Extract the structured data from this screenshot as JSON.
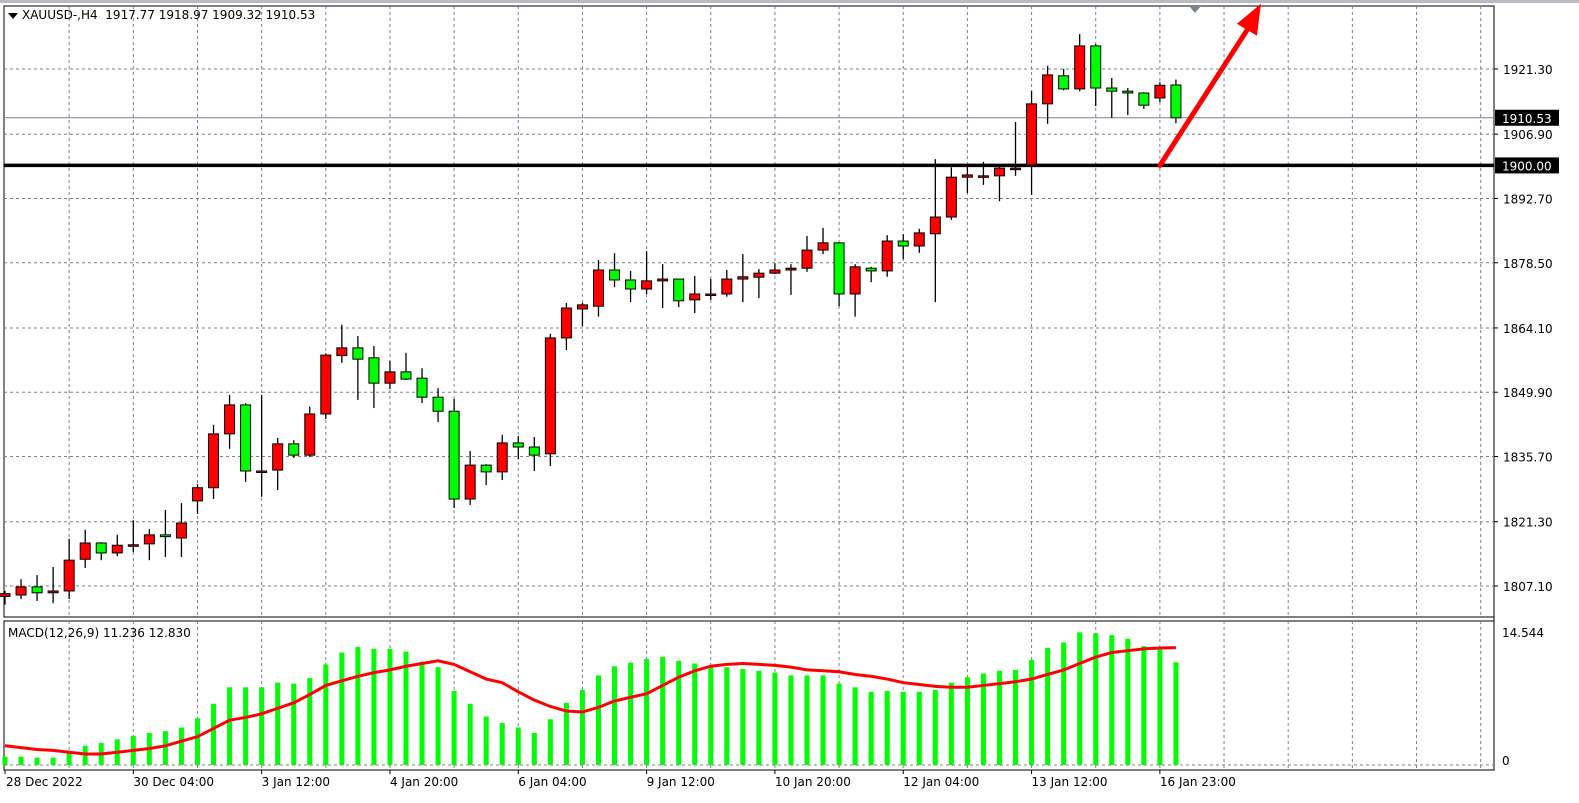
{
  "header": {
    "symbol": "XAUUSD-,H4",
    "ohlc": "1917.77 1918.97 1909.32 1910.53"
  },
  "macd_panel": {
    "label": "MACD(12,26,9) 11.236 12.830"
  },
  "colors": {
    "up_candle": "#ff0000",
    "down_candle": "#00ff00",
    "histogram": "#00ff00",
    "signal_line": "#ff0000",
    "grid": "#76828f",
    "level_line": "#000000",
    "bid_line": "#76828f",
    "arrow": "#ff0000"
  },
  "chart_data": [
    {
      "type": "candlestick",
      "title": "XAUUSD-,H4",
      "grid": true,
      "price_axis": {
        "range": [
          1800.25,
          1935.66
        ],
        "ticks": [
          "1921.30",
          "1906.90",
          "1892.70",
          "1878.50",
          "1864.10",
          "1849.90",
          "1835.70",
          "1821.30",
          "1807.10"
        ],
        "highlighted": [
          "1910.53",
          "1900.00"
        ]
      },
      "time_axis": {
        "labels": [
          {
            "candle": 0,
            "text": "28 Dec 2022"
          },
          {
            "candle": 8,
            "text": "30 Dec 04:00"
          },
          {
            "candle": 16,
            "text": "3 Jan 12:00"
          },
          {
            "candle": 24,
            "text": "4 Jan 20:00"
          },
          {
            "candle": 32,
            "text": "6 Jan 04:00"
          },
          {
            "candle": 40,
            "text": "9 Jan 12:00"
          },
          {
            "candle": 48,
            "text": "10 Jan 20:00"
          },
          {
            "candle": 56,
            "text": "12 Jan 04:00"
          },
          {
            "candle": 64,
            "text": "13 Jan 12:00"
          },
          {
            "candle": 72,
            "text": "16 Jan 23:00"
          }
        ]
      },
      "ohlc": [
        [
          1804.8,
          1806.0,
          1803.0,
          1805.4
        ],
        [
          1805.1,
          1808.6,
          1804.2,
          1806.9
        ],
        [
          1806.9,
          1809.5,
          1803.8,
          1805.6
        ],
        [
          1805.6,
          1811.3,
          1803.3,
          1806.0
        ],
        [
          1806.0,
          1817.5,
          1804.2,
          1812.8
        ],
        [
          1813.0,
          1819.5,
          1811.1,
          1816.6
        ],
        [
          1816.6,
          1816.8,
          1812.8,
          1814.4
        ],
        [
          1814.4,
          1818.4,
          1813.7,
          1816.1
        ],
        [
          1816.2,
          1821.6,
          1814.6,
          1816.2
        ],
        [
          1816.4,
          1819.7,
          1812.8,
          1818.4
        ],
        [
          1818.4,
          1823.9,
          1813.5,
          1818.0
        ],
        [
          1817.7,
          1825.4,
          1813.5,
          1821.0
        ],
        [
          1825.9,
          1829.6,
          1823.0,
          1828.8
        ],
        [
          1828.8,
          1842.7,
          1826.3,
          1840.7
        ],
        [
          1840.7,
          1849.3,
          1837.4,
          1847.1
        ],
        [
          1847.1,
          1847.5,
          1830.1,
          1832.5
        ],
        [
          1832.5,
          1849.3,
          1826.8,
          1832.5
        ],
        [
          1832.7,
          1839.8,
          1828.3,
          1838.5
        ],
        [
          1838.5,
          1839.3,
          1835.4,
          1836.0
        ],
        [
          1836.0,
          1846.7,
          1835.6,
          1845.1
        ],
        [
          1845.1,
          1858.5,
          1844.0,
          1858.1
        ],
        [
          1858.0,
          1864.8,
          1856.4,
          1859.7
        ],
        [
          1859.7,
          1862.3,
          1848.2,
          1857.2
        ],
        [
          1857.5,
          1860.1,
          1846.4,
          1851.9
        ],
        [
          1851.9,
          1856.8,
          1850.6,
          1854.4
        ],
        [
          1854.4,
          1858.6,
          1852.6,
          1852.8
        ],
        [
          1853.0,
          1855.2,
          1847.5,
          1848.8
        ],
        [
          1848.8,
          1850.8,
          1843.3,
          1845.7
        ],
        [
          1845.7,
          1848.4,
          1824.3,
          1826.3
        ],
        [
          1826.3,
          1836.9,
          1825.0,
          1833.8
        ],
        [
          1833.8,
          1834.0,
          1829.4,
          1832.3
        ],
        [
          1832.3,
          1840.5,
          1830.5,
          1838.7
        ],
        [
          1838.7,
          1840.2,
          1835.1,
          1837.8
        ],
        [
          1837.8,
          1840.0,
          1832.5,
          1836.0
        ],
        [
          1836.3,
          1862.8,
          1833.6,
          1861.9
        ],
        [
          1861.9,
          1869.6,
          1859.2,
          1868.5
        ],
        [
          1868.3,
          1869.6,
          1864.5,
          1869.2
        ],
        [
          1868.9,
          1879.1,
          1866.6,
          1876.9
        ],
        [
          1876.9,
          1880.6,
          1873.1,
          1874.7
        ],
        [
          1874.7,
          1876.7,
          1869.8,
          1872.7
        ],
        [
          1872.7,
          1881.1,
          1871.6,
          1874.5
        ],
        [
          1874.5,
          1878.2,
          1868.5,
          1874.9
        ],
        [
          1874.9,
          1875.0,
          1868.7,
          1870.1
        ],
        [
          1870.3,
          1875.6,
          1867.4,
          1871.6
        ],
        [
          1871.6,
          1874.9,
          1870.3,
          1871.6
        ],
        [
          1871.6,
          1876.9,
          1871.0,
          1874.9
        ],
        [
          1874.9,
          1880.4,
          1869.8,
          1875.4
        ],
        [
          1875.3,
          1877.1,
          1870.7,
          1876.2
        ],
        [
          1876.2,
          1878.4,
          1876.0,
          1876.9
        ],
        [
          1876.9,
          1878.2,
          1871.4,
          1877.3
        ],
        [
          1877.3,
          1884.4,
          1876.5,
          1881.3
        ],
        [
          1881.3,
          1886.2,
          1880.4,
          1882.9
        ],
        [
          1882.9,
          1883.0,
          1868.9,
          1871.6
        ],
        [
          1871.6,
          1878.2,
          1866.6,
          1877.6
        ],
        [
          1877.3,
          1877.6,
          1874.2,
          1876.7
        ],
        [
          1876.7,
          1884.6,
          1875.4,
          1883.3
        ],
        [
          1883.3,
          1884.8,
          1879.3,
          1882.2
        ],
        [
          1882.2,
          1886.0,
          1880.7,
          1885.1
        ],
        [
          1884.9,
          1901.4,
          1869.8,
          1888.6
        ],
        [
          1888.6,
          1899.6,
          1888.0,
          1897.4
        ],
        [
          1897.4,
          1900.0,
          1893.9,
          1897.9
        ],
        [
          1897.7,
          1900.8,
          1895.7,
          1897.7
        ],
        [
          1897.7,
          1900.2,
          1892.1,
          1899.4
        ],
        [
          1899.4,
          1909.6,
          1897.7,
          1899.4
        ],
        [
          1900.1,
          1916.4,
          1893.5,
          1913.6
        ],
        [
          1913.6,
          1922.0,
          1909.2,
          1920.0
        ],
        [
          1919.8,
          1921.3,
          1916.6,
          1916.9
        ],
        [
          1916.9,
          1929.0,
          1916.4,
          1926.4
        ],
        [
          1926.4,
          1926.8,
          1913.1,
          1917.1
        ],
        [
          1917.1,
          1919.3,
          1910.5,
          1916.4
        ],
        [
          1916.4,
          1917.1,
          1911.1,
          1916.0
        ],
        [
          1916.0,
          1916.2,
          1912.5,
          1913.3
        ],
        [
          1914.9,
          1918.4,
          1914.0,
          1917.7
        ],
        [
          1917.77,
          1918.97,
          1909.32,
          1910.53
        ]
      ],
      "annotations": [
        {
          "type": "horizontal_line",
          "price": 1900.0
        },
        {
          "type": "bid_line",
          "price": 1910.53
        },
        {
          "type": "arrow",
          "from": {
            "candle": 72,
            "price": 1900.0
          },
          "to": {
            "candle": 78.3,
            "price": 1935.7
          }
        }
      ]
    },
    {
      "type": "bar+line",
      "title": "MACD(12,26,9)",
      "ylim": [
        0,
        14.544
      ],
      "y_ticks": [
        "14.544",
        "0"
      ],
      "histogram": [
        0.9,
        0.9,
        0.8,
        0.8,
        1.4,
        2.1,
        2.4,
        2.8,
        3.2,
        3.5,
        3.7,
        4.1,
        5.1,
        6.7,
        8.5,
        8.5,
        8.5,
        9.0,
        8.9,
        9.5,
        11.0,
        12.3,
        12.9,
        12.7,
        12.7,
        12.4,
        11.3,
        10.7,
        8.1,
        6.7,
        5.3,
        4.6,
        4.1,
        3.5,
        5.0,
        6.8,
        8.2,
        9.8,
        10.8,
        11.2,
        11.6,
        11.8,
        11.4,
        11.1,
        10.7,
        10.7,
        10.5,
        10.3,
        10.1,
        9.8,
        9.8,
        9.8,
        8.9,
        8.5,
        8.0,
        8.1,
        8.0,
        8.0,
        8.2,
        9.0,
        9.6,
        10.0,
        10.3,
        10.4,
        11.5,
        12.8,
        13.4,
        14.5,
        14.4,
        14.2,
        13.8,
        13.0,
        12.8,
        11.236
      ],
      "signal": [
        2.1,
        1.9,
        1.7,
        1.6,
        1.4,
        1.2,
        1.2,
        1.4,
        1.6,
        1.8,
        2.1,
        2.6,
        3.1,
        4.0,
        4.9,
        5.2,
        5.6,
        6.2,
        6.8,
        7.7,
        8.7,
        9.2,
        9.7,
        10.1,
        10.4,
        10.8,
        11.1,
        11.4,
        11.0,
        10.2,
        9.4,
        9.0,
        8.0,
        7.1,
        6.4,
        5.9,
        5.8,
        6.3,
        7.0,
        7.4,
        7.8,
        8.7,
        9.6,
        10.3,
        10.8,
        11.0,
        11.1,
        11.0,
        10.9,
        10.7,
        10.4,
        10.3,
        10.2,
        9.9,
        9.7,
        9.4,
        9.0,
        8.8,
        8.6,
        8.5,
        8.5,
        8.7,
        8.9,
        9.1,
        9.4,
        9.9,
        10.4,
        11.1,
        11.8,
        12.3,
        12.5,
        12.7,
        12.8,
        12.83
      ]
    }
  ]
}
